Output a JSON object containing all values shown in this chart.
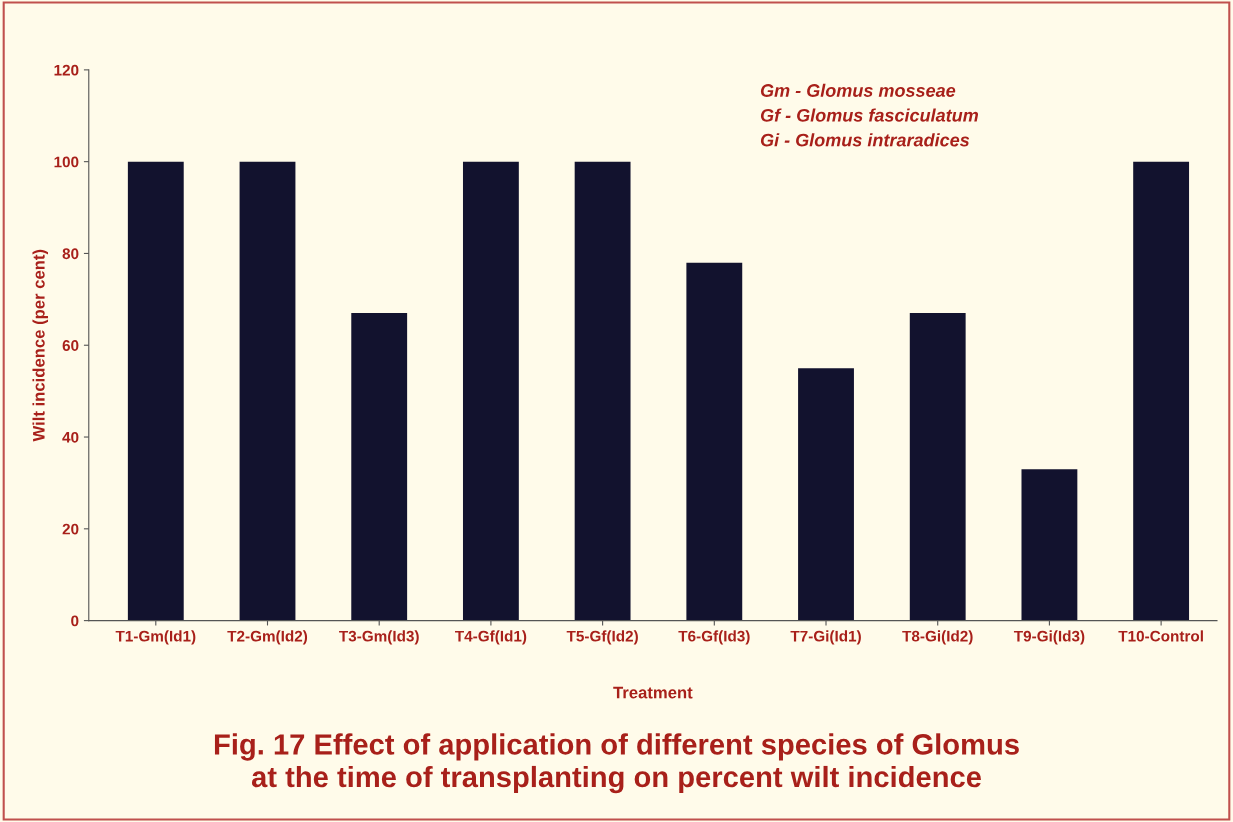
{
  "chart_data": {
    "type": "bar",
    "title": "Fig. 17 Effect of application of different species of Glomus\nat the time of transplanting on percent wilt incidence",
    "xlabel": "Treatment",
    "ylabel": "Wilt incidence (per cent)",
    "categories": [
      "T1-Gm(Id1)",
      "T2-Gm(Id2)",
      "T3-Gm(Id3)",
      "T4-Gf(Id1)",
      "T5-Gf(Id2)",
      "T6-Gf(Id3)",
      "T7-Gi(Id1)",
      "T8-Gi(Id2)",
      "T9-Gi(Id3)",
      "T10-Control"
    ],
    "values": [
      100,
      100,
      67,
      100,
      100,
      78,
      55,
      67,
      33,
      100
    ],
    "color": "#12122e",
    "ylim": [
      0,
      120
    ],
    "yticks": [
      0,
      20,
      40,
      60,
      80,
      100,
      120
    ],
    "grid": false,
    "annotations": [
      "Gm - Glomus mosseae",
      "Gf - Glomus fasciculatum",
      "Gi - Glomus intraradices"
    ]
  }
}
